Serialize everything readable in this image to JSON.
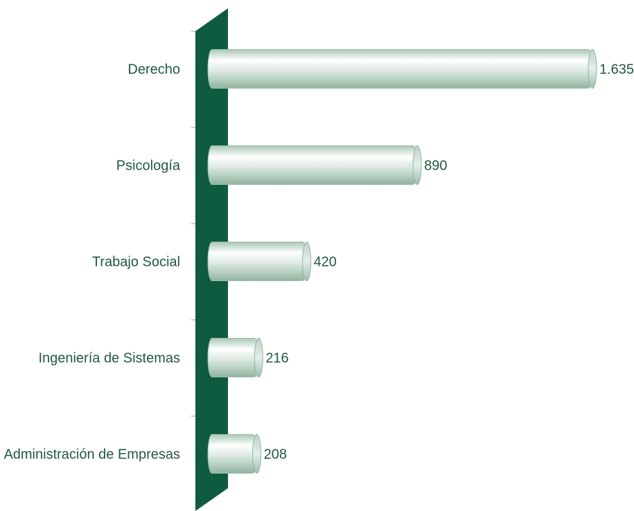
{
  "chart_data": {
    "type": "bar",
    "orientation": "horizontal",
    "categories": [
      "Derecho",
      "Psicología",
      "Trabajo Social",
      "Ingeniería de Sistemas",
      "Administración de Empresas"
    ],
    "values": [
      1635,
      890,
      420,
      216,
      208
    ],
    "value_labels": [
      "1.635",
      "890",
      "420",
      "216",
      "208"
    ],
    "title": "",
    "xlabel": "",
    "ylabel": "",
    "xlim": [
      0,
      1635
    ],
    "grid": false,
    "legend": "none",
    "colors": {
      "axis_wall": "#0e5c3f",
      "bar_light": "#ffffff",
      "bar_mid": "#c9ddd1",
      "bar_dark": "#8fb59f",
      "text": "#1e5a3e",
      "tick": "#bdbdbd"
    }
  }
}
